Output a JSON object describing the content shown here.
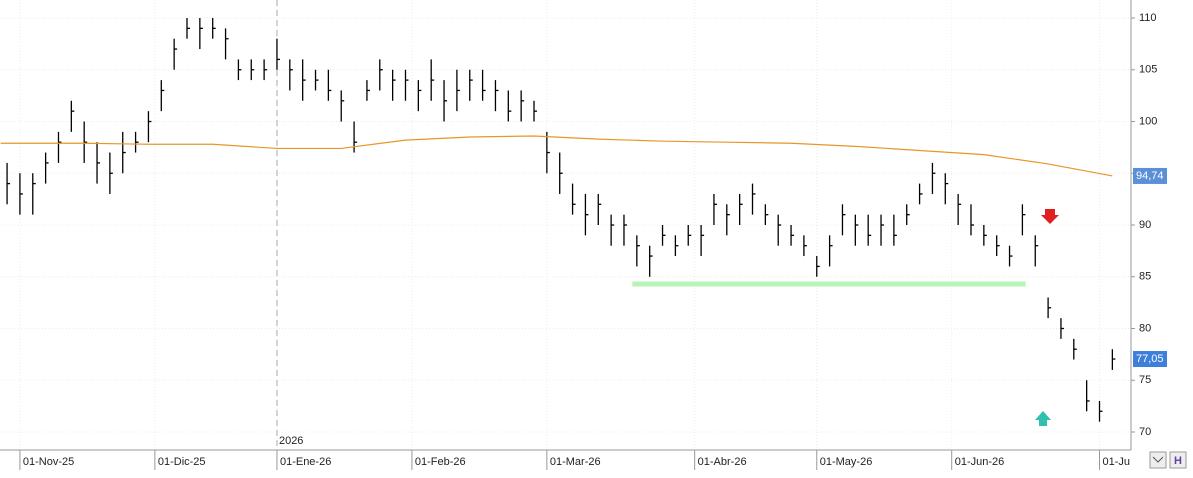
{
  "chart_data": {
    "type": "ohlc",
    "x": [
      -2,
      0,
      2,
      4,
      6,
      8,
      10,
      12,
      14,
      16,
      18,
      20,
      22,
      24,
      26,
      28,
      30,
      32,
      34,
      36,
      38,
      40,
      42,
      44,
      46,
      48,
      50,
      52,
      54,
      56,
      58,
      60,
      62,
      64,
      66,
      68,
      70,
      72,
      74,
      76,
      78,
      80,
      82,
      84,
      86,
      88,
      90,
      92,
      94,
      96,
      98,
      100,
      102,
      104,
      106,
      108,
      110,
      112,
      114,
      116,
      118,
      120,
      122,
      124,
      126,
      128,
      130,
      132,
      134,
      136,
      138,
      140,
      142,
      144,
      146,
      148,
      150,
      152,
      154,
      156,
      158,
      160,
      162,
      164,
      166,
      168,
      170
    ],
    "high": [
      96,
      95,
      95,
      97,
      99,
      102,
      100,
      98,
      97,
      99,
      99,
      101,
      104,
      108,
      110,
      110,
      110,
      109,
      106,
      106,
      106,
      108,
      106,
      106,
      105,
      105,
      103,
      100,
      104,
      106,
      105,
      105,
      104,
      106,
      104,
      105,
      105,
      105,
      104,
      103,
      103,
      102,
      99,
      97,
      94,
      93,
      93,
      91,
      91,
      89,
      88,
      90,
      89,
      90,
      90,
      93,
      92,
      93,
      94,
      92,
      91,
      90,
      89,
      87,
      89,
      92,
      91,
      91,
      91,
      91,
      92,
      94,
      96,
      95,
      93,
      92,
      90,
      89,
      88,
      92,
      89,
      83,
      81,
      79,
      75,
      73,
      78
    ],
    "low": [
      92,
      91,
      91,
      94,
      96,
      99,
      96,
      94,
      93,
      95,
      97,
      98,
      101,
      105,
      108,
      107,
      108,
      106,
      104,
      104,
      104,
      105,
      103,
      102,
      103,
      102,
      100,
      97,
      102,
      103,
      102,
      102,
      101,
      102,
      100,
      101,
      102,
      102,
      101,
      100,
      100,
      100,
      95,
      93,
      91,
      89,
      90,
      88,
      88,
      86,
      85,
      88,
      87,
      88,
      87,
      90,
      89,
      90,
      91,
      90,
      88,
      88,
      87,
      85,
      86,
      89,
      88,
      88,
      88,
      88,
      90,
      92,
      93,
      92,
      90,
      89,
      88,
      87,
      86,
      89,
      86,
      81,
      79,
      77,
      72,
      71,
      76
    ],
    "close": [
      94,
      93,
      94,
      96,
      98,
      101,
      98,
      96,
      95,
      97,
      98,
      100,
      103,
      107,
      109,
      109,
      109,
      108,
      105,
      105,
      105,
      106,
      105,
      104,
      104,
      103,
      102,
      98,
      103,
      105,
      104,
      104,
      103,
      104,
      102,
      103,
      104,
      103,
      103,
      101,
      102,
      101,
      97,
      95,
      92,
      91,
      92,
      90,
      90,
      88,
      87,
      89,
      88,
      89,
      89,
      92,
      91,
      92,
      93,
      91,
      90,
      89,
      88,
      86,
      88,
      91,
      90,
      89,
      90,
      89,
      91,
      93,
      95,
      94,
      92,
      90,
      89,
      88,
      87,
      91,
      88,
      82,
      80,
      78,
      73,
      72,
      77.05
    ],
    "close_label": "77,05",
    "bar_color": "#000000",
    "moving_average": {
      "x": [
        -3,
        10,
        20,
        30,
        40,
        50,
        60,
        70,
        80,
        90,
        100,
        110,
        120,
        130,
        140,
        150,
        160,
        170
      ],
      "values": [
        97.9,
        97.9,
        97.8,
        97.8,
        97.4,
        97.4,
        98.2,
        98.5,
        98.6,
        98.3,
        98.1,
        98.0,
        97.9,
        97.6,
        97.2,
        96.8,
        95.9,
        94.74
      ],
      "last_label": "94,74",
      "color": "#e8962a"
    },
    "support": {
      "y": 84.3,
      "x": [
        95.3,
        156.5
      ],
      "color": "#b8f3b8"
    },
    "year_marker": {
      "x": 40,
      "label": "2026"
    },
    "xlim": [
      -3.1,
      172.9
    ],
    "ylim": [
      68.26,
      111.74
    ],
    "xticks": [
      {
        "value": 0,
        "label": "01-Nov-25"
      },
      {
        "value": 21,
        "label": "01-Dic-25"
      },
      {
        "value": 40,
        "label": "01-Ene-26"
      },
      {
        "value": 61,
        "label": "01-Feb-26"
      },
      {
        "value": 82,
        "label": "01-Mar-26"
      },
      {
        "value": 105,
        "label": "01-Abr-26"
      },
      {
        "value": 124,
        "label": "01-May-26"
      },
      {
        "value": 145,
        "label": "01-Jun-26"
      },
      {
        "value": 168,
        "label": "01-Ju"
      }
    ],
    "yticks": [
      70,
      75,
      80,
      85,
      90,
      95,
      100,
      105,
      110
    ],
    "grid": true
  }
}
